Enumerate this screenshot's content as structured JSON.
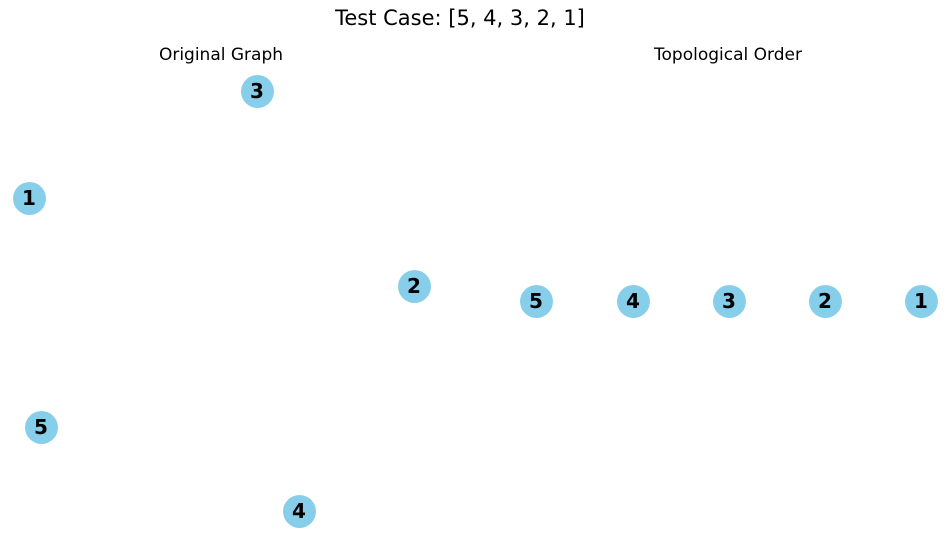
{
  "title": "Test Case: [5, 4, 3, 2, 1]",
  "panels": {
    "original": {
      "title": "Original Graph",
      "nodes": [
        "3",
        "1",
        "2",
        "5",
        "4"
      ]
    },
    "topological": {
      "title": "Topological Order",
      "nodes": [
        "5",
        "4",
        "3",
        "2",
        "1"
      ]
    }
  },
  "colors": {
    "node_fill": "#87CEEB"
  }
}
